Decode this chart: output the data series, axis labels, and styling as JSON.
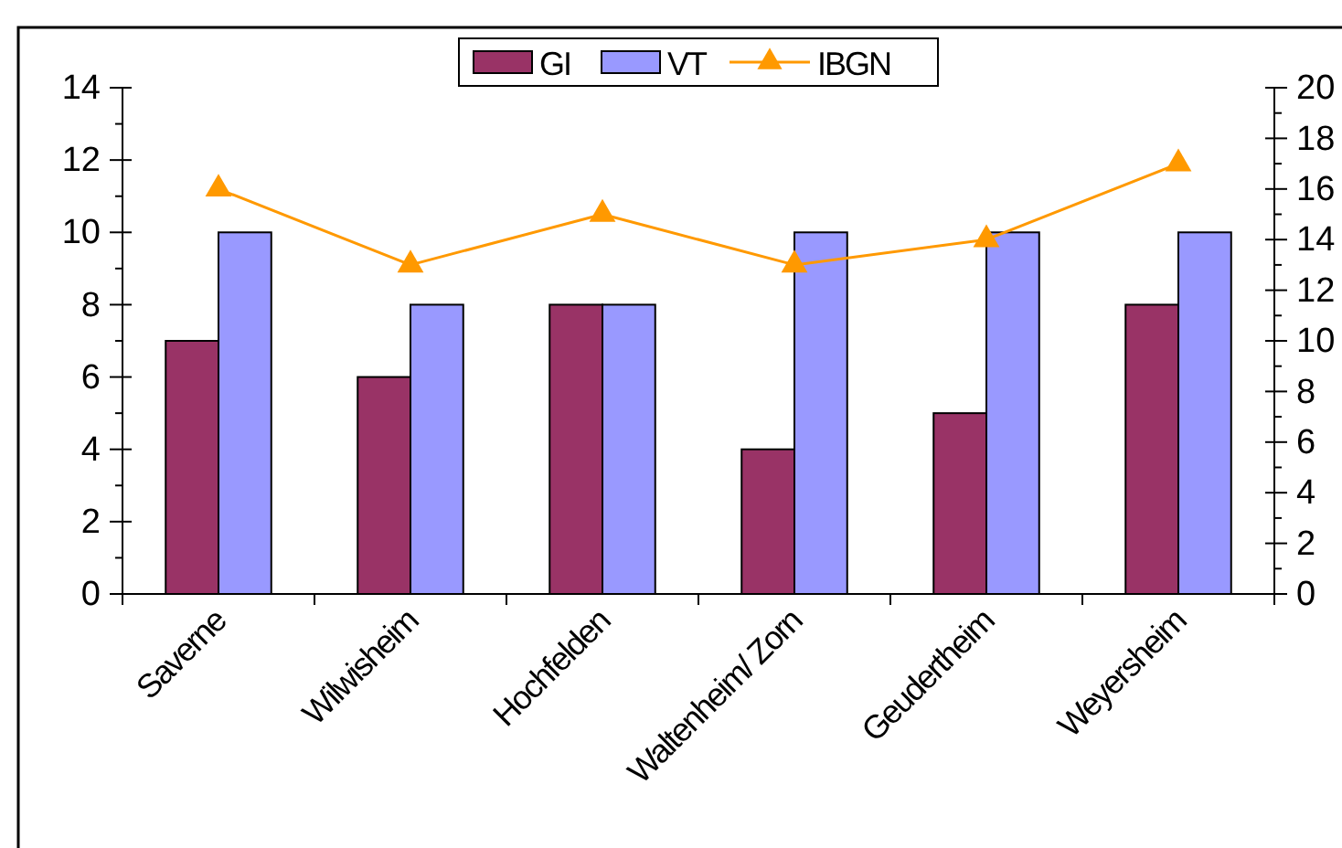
{
  "chart_data": {
    "type": "bar",
    "categories": [
      "Saverne",
      "Wilwisheim",
      "Hochfelden",
      "Waltenheim/ Zorn",
      "Geudertheim",
      "Weyersheim"
    ],
    "series": [
      {
        "name": "GI",
        "color": "#993366",
        "values": [
          7,
          6,
          8,
          4,
          5,
          8
        ]
      },
      {
        "name": "VT",
        "color": "#9999ff",
        "values": [
          10,
          8,
          8,
          10,
          10,
          10
        ]
      },
      {
        "name": "IBGN",
        "type": "line",
        "axis": "y2",
        "color": "#ff9900",
        "marker": "triangle",
        "values": [
          16,
          13,
          15,
          13,
          14,
          17
        ]
      }
    ],
    "ylim": [
      0,
      14
    ],
    "yticks": [
      0,
      {
        "value": 1,
        "label": null
      },
      2,
      {
        "value": 3,
        "label": null
      },
      4,
      {
        "value": 5,
        "label": null
      },
      6,
      {
        "value": 7,
        "label": null
      },
      8,
      {
        "value": 9,
        "label": null
      },
      10,
      {
        "value": 11,
        "label": null
      },
      12,
      {
        "value": 13,
        "label": null
      },
      14
    ],
    "y2lim": [
      0,
      20
    ],
    "y2ticks": [
      0,
      {
        "value": 1,
        "label": null
      },
      2,
      {
        "value": 3,
        "label": null
      },
      4,
      {
        "value": 5,
        "label": null
      },
      6,
      {
        "value": 7,
        "label": null
      },
      8,
      {
        "value": 9,
        "label": null
      },
      10,
      {
        "value": 11,
        "label": null
      },
      12,
      {
        "value": 13,
        "label": null
      },
      14,
      {
        "value": 15,
        "label": null
      },
      16,
      {
        "value": 17,
        "label": null
      },
      18,
      {
        "value": 19,
        "label": null
      },
      20
    ],
    "legend": "top",
    "grid": false
  }
}
